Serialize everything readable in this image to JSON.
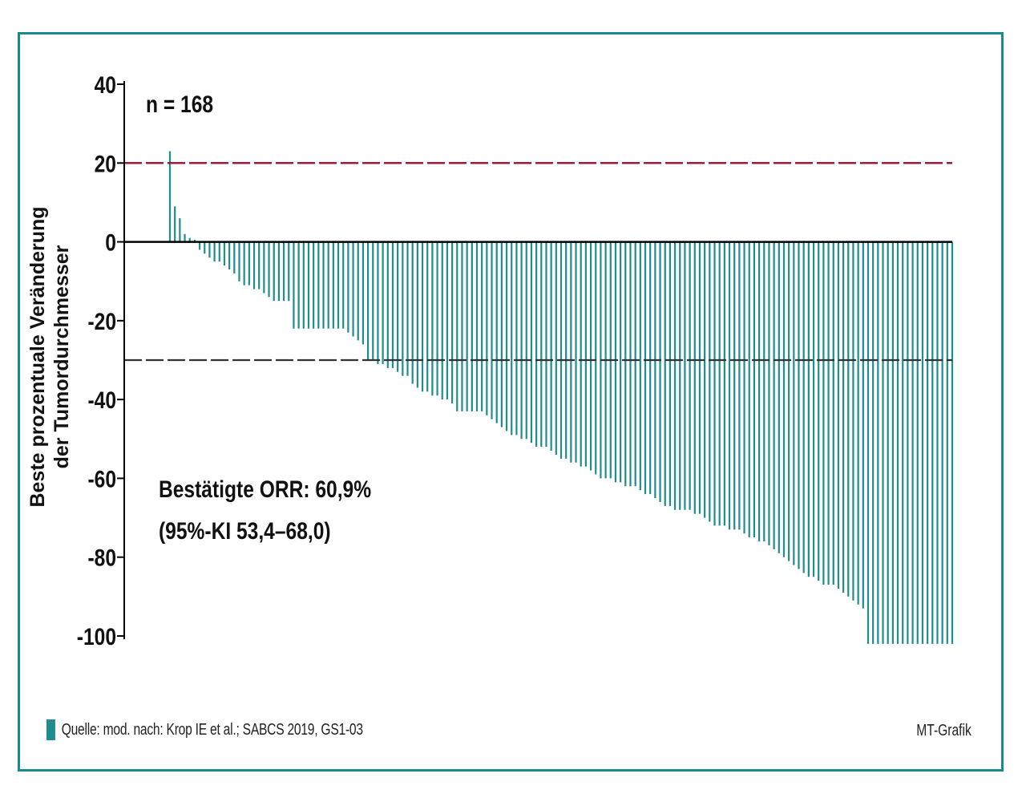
{
  "chart_data": {
    "type": "bar",
    "title": "",
    "ylabel_line1": "Beste prozentuale Veränderung",
    "ylabel_line2": "der Tumordurchmesser",
    "xlabel": "",
    "ylim": [
      -100,
      40
    ],
    "yticks": [
      "40",
      "20",
      "0",
      "-20",
      "-40",
      "-60",
      "-80",
      "-100"
    ],
    "ytick_values": [
      40,
      20,
      0,
      -20,
      -40,
      -60,
      -80,
      -100
    ],
    "threshold_upper": 20,
    "threshold_lower": -30,
    "n_label": "n = 168",
    "annotation_line1": "Bestätigte ORR: 60,9%",
    "annotation_line2": "(95%-KI 53,4–68,0)",
    "values": [
      23,
      9,
      6,
      2,
      1,
      0.5,
      -2,
      -3,
      -4,
      -5,
      -5,
      -6,
      -7,
      -8,
      -10,
      -11,
      -11,
      -12,
      -12,
      -13,
      -14,
      -15,
      -15,
      -15,
      -15,
      -22,
      -22,
      -22,
      -22,
      -22,
      -22,
      -22,
      -22,
      -22,
      -22,
      -22,
      -23,
      -24,
      -25,
      -26,
      -30,
      -30,
      -31,
      -31,
      -32,
      -32,
      -33,
      -34,
      -34,
      -36,
      -37,
      -38,
      -38,
      -39,
      -39,
      -40,
      -40,
      -41,
      -43,
      -43,
      -43,
      -43,
      -43,
      -43,
      -44,
      -45,
      -46,
      -47,
      -48,
      -49,
      -49,
      -50,
      -50,
      -51,
      -52,
      -52,
      -52,
      -53,
      -54,
      -55,
      -55,
      -56,
      -56,
      -57,
      -57,
      -58,
      -59,
      -60,
      -60,
      -60,
      -61,
      -61,
      -62,
      -62,
      -62,
      -63,
      -64,
      -64,
      -65,
      -66,
      -67,
      -67,
      -68,
      -68,
      -68,
      -68,
      -69,
      -69,
      -70,
      -71,
      -72,
      -72,
      -72,
      -73,
      -73,
      -73,
      -74,
      -75,
      -75,
      -76,
      -76,
      -77,
      -78,
      -79,
      -80,
      -81,
      -82,
      -83,
      -84,
      -85,
      -85,
      -86,
      -87,
      -87,
      -87,
      -88,
      -89,
      -90,
      -91,
      -92,
      -93,
      -102,
      -102,
      -102,
      -102,
      -102,
      -102,
      -102,
      -102,
      -102,
      -102,
      -102,
      -102,
      -102,
      -102,
      -102,
      -102,
      -102,
      -102
    ],
    "colors": {
      "bars": "#1f8c8e",
      "upper_line": "#9b1d3a",
      "lower_line": "#333333",
      "zero_line": "#000000",
      "frame": "#1a8a8f"
    }
  },
  "footer": {
    "source": "Quelle: mod. nach: Krop IE et al.; SABCS 2019, GS1-03",
    "credit": "MT-Grafik"
  }
}
